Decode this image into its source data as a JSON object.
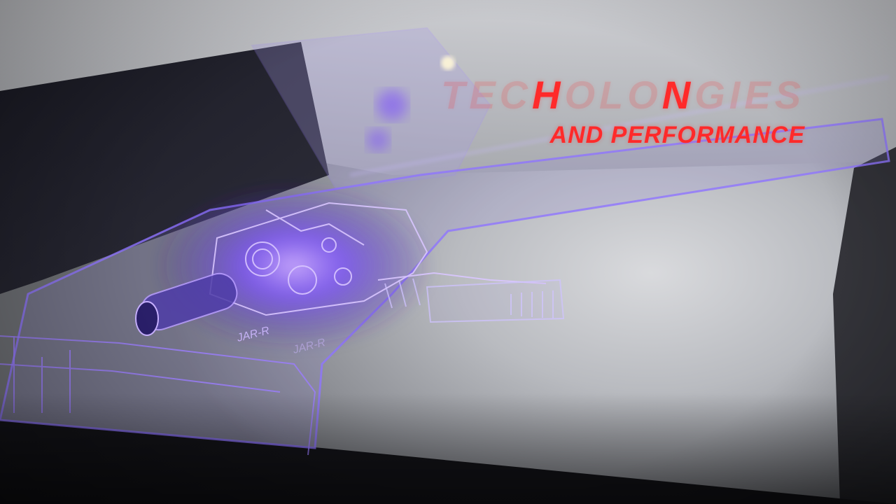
{
  "scene": {
    "description_alt": "",
    "accent_color": "#ff2a2a",
    "glow_color": "#7a4dff"
  },
  "overlay": {
    "headline_letter_1": "H",
    "headline_letter_2": "N",
    "headline_faded_prefix": "TEC",
    "headline_faded_mid": "OLO",
    "headline_faded_suffix": "GIES",
    "subline": "AND PERFORMANCE"
  },
  "engraving": {
    "mark_1": "JAR-R",
    "mark_2": "JAR-R"
  }
}
